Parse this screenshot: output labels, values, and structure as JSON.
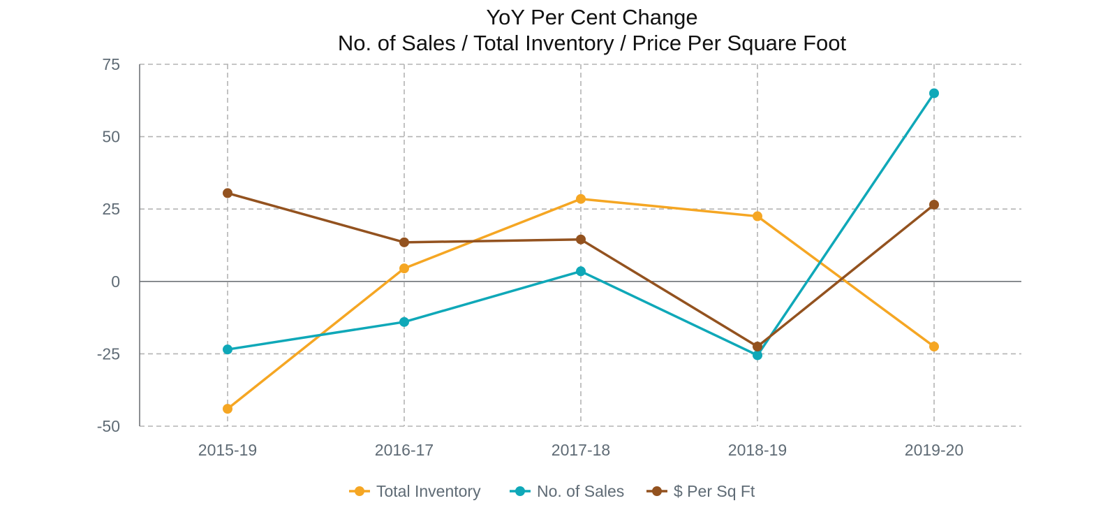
{
  "chart_data": {
    "type": "line",
    "title_lines": [
      "YoY Per Cent Change",
      "No. of Sales / Total Inventory /  Price Per Square Foot"
    ],
    "xlabel": "",
    "ylabel": "",
    "categories": [
      "2015-19",
      "2016-17",
      "2017-18",
      "2018-19",
      "2019-20"
    ],
    "ylim": [
      -50,
      75
    ],
    "yticks": [
      75,
      50,
      25,
      0,
      -25,
      -50
    ],
    "grid": true,
    "legend_position": "bottom",
    "series": [
      {
        "name": "Total Inventory",
        "color": "#f5a623",
        "values": [
          -44,
          4.5,
          28.5,
          22.5,
          -22.5
        ]
      },
      {
        "name": "No. of Sales",
        "color": "#0fa8b8",
        "values": [
          -23.5,
          -14,
          3.5,
          -25.5,
          65
        ]
      },
      {
        "name": "$ Per Sq Ft",
        "color": "#93521f",
        "values": [
          30.5,
          13.5,
          14.5,
          -22.5,
          26.5
        ]
      }
    ]
  }
}
